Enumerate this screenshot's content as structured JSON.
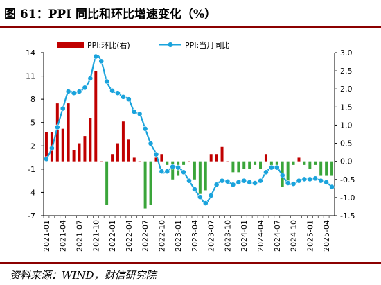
{
  "header": {
    "title": "图 61：PPI 同比和环比增速变化（%）"
  },
  "footer": {
    "source": "资料来源：WIND，财信研究院"
  },
  "colors": {
    "bar": "#c00000",
    "bar_negative": "#3aa53a",
    "line": "#1aa3dc",
    "accent": "#8b0000"
  },
  "chart_data": {
    "type": "bar+line",
    "x": [
      "2021-01",
      "2021-02",
      "2021-03",
      "2021-04",
      "2021-05",
      "2021-06",
      "2021-07",
      "2021-08",
      "2021-09",
      "2021-10",
      "2021-11",
      "2021-12",
      "2022-01",
      "2022-02",
      "2022-03",
      "2022-04",
      "2022-05",
      "2022-06",
      "2022-07",
      "2022-08",
      "2022-09",
      "2022-10",
      "2022-11",
      "2022-12",
      "2023-01",
      "2023-02",
      "2023-03",
      "2023-04",
      "2023-05",
      "2023-06",
      "2023-07",
      "2023-08",
      "2023-09",
      "2023-10",
      "2023-11",
      "2023-12",
      "2024-01",
      "2024-02",
      "2024-03",
      "2024-04",
      "2024-05",
      "2024-06",
      "2024-07",
      "2024-08",
      "2024-09",
      "2024-10",
      "2024-11",
      "2024-12",
      "2025-01",
      "2025-02",
      "2025-03",
      "2025-04",
      "2025-05"
    ],
    "x_tick_labels": [
      "2021-01",
      "2021-04",
      "2021-07",
      "2021-10",
      "2022-01",
      "2022-04",
      "2022-07",
      "2022-10",
      "2023-01",
      "2023-04",
      "2023-07",
      "2023-10",
      "2024-01",
      "2024-04",
      "2024-07",
      "2024-10",
      "2025-01",
      "2025-04"
    ],
    "left_axis": {
      "ticks": [
        14,
        11,
        8,
        5,
        2,
        -1,
        -4,
        -7
      ],
      "ylim": [
        -7,
        14
      ]
    },
    "right_axis": {
      "ticks": [
        "3.0",
        "2.5",
        "2.0",
        "1.5",
        "1.0",
        "0.5",
        "0.0",
        "-0.5",
        "-1.0",
        "-1.5"
      ],
      "ylim": [
        -1.5,
        3.0
      ]
    },
    "series": [
      {
        "name": "PPI:当月同比",
        "type": "line",
        "axis": "left",
        "values": [
          0.3,
          1.7,
          4.4,
          6.8,
          9.0,
          8.8,
          9.0,
          9.5,
          10.7,
          13.5,
          12.9,
          10.3,
          9.1,
          8.8,
          8.3,
          8.0,
          6.4,
          6.1,
          4.2,
          2.3,
          0.9,
          -1.3,
          -1.3,
          -0.7,
          -0.8,
          -1.4,
          -2.5,
          -3.6,
          -4.6,
          -5.4,
          -4.4,
          -3.0,
          -2.5,
          -2.6,
          -3.0,
          -2.7,
          -2.5,
          -2.7,
          -2.8,
          -2.5,
          -1.4,
          -0.8,
          -0.8,
          -1.8,
          -2.8,
          -2.9,
          -2.5,
          -2.3,
          -2.3,
          -2.2,
          -2.5,
          -2.7,
          -3.3
        ]
      },
      {
        "name": "PPI:环比(右)",
        "type": "bar",
        "axis": "right",
        "values": [
          0.8,
          0.8,
          1.6,
          0.9,
          1.6,
          0.3,
          0.5,
          0.7,
          1.2,
          2.5,
          0.0,
          -1.2,
          0.2,
          0.5,
          1.1,
          0.6,
          0.1,
          0.0,
          -1.3,
          -1.2,
          0.1,
          0.2,
          -0.1,
          -0.5,
          -0.4,
          -0.1,
          0.0,
          -0.5,
          -0.9,
          -0.8,
          0.2,
          0.2,
          0.4,
          0.0,
          -0.3,
          -0.3,
          -0.2,
          -0.2,
          -0.1,
          -0.2,
          0.2,
          -0.2,
          -0.2,
          -0.7,
          -0.6,
          -0.1,
          0.1,
          -0.1,
          -0.2,
          -0.1,
          -0.4,
          -0.4,
          -0.4
        ]
      }
    ],
    "legend": {
      "placement": "top",
      "entries": [
        "PPI:环比(右)",
        "PPI:当月同比"
      ]
    },
    "grid": false
  }
}
